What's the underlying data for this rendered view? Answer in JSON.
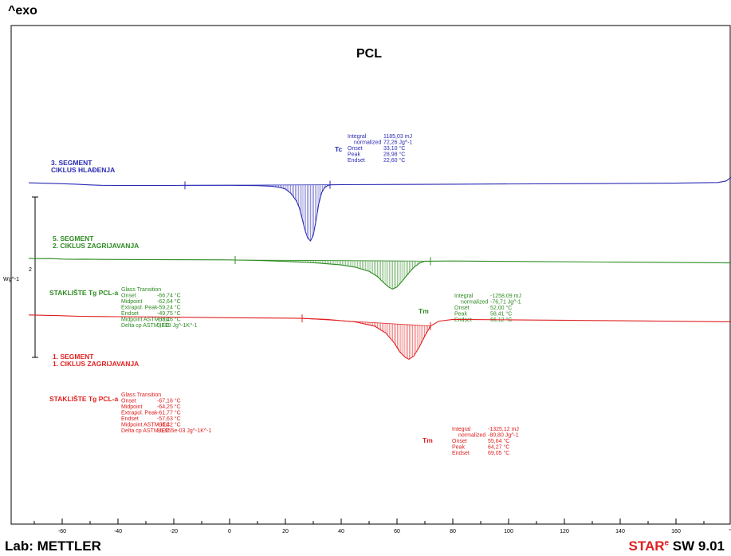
{
  "header": {
    "exo": "^exo"
  },
  "footer": {
    "lab": "Lab: METTLER",
    "star_a": "STAR",
    "star_e": "e",
    "star_b": " SW 9.01"
  },
  "colors": {
    "blue": "#2a2ab4",
    "green": "#2e8b22",
    "red": "#e02020"
  },
  "chart_data": {
    "type": "line",
    "title": "PCL",
    "xlabel": "°C",
    "ylabel": "Wg^-1",
    "y_scale_mark": "2",
    "xlim": [
      -72,
      182
    ],
    "xticks": [
      -60,
      -40,
      -20,
      0,
      20,
      40,
      60,
      80,
      100,
      120,
      140,
      160,
      180
    ],
    "xtick_labels": [
      "-60",
      "-40",
      "-20",
      "0",
      "20",
      "40",
      "60",
      "80",
      "100",
      "120",
      "140",
      "160",
      "°C"
    ],
    "grid": false,
    "series": [
      {
        "name": "3. SEGMENT CIKLUS HLAĐENJA",
        "label_lines": [
          "3. SEGMENT",
          "CIKLUS HLAĐENJA"
        ],
        "color": "#2a2ab4",
        "peak_label": "Tc",
        "x": [
          -72,
          -66,
          -60,
          -55,
          -50,
          -46,
          -40,
          -20,
          -16,
          0,
          10,
          15,
          18,
          20,
          22,
          24,
          25,
          26,
          27,
          28,
          29,
          30,
          31,
          32,
          33,
          34,
          35,
          36,
          40,
          80,
          120,
          160,
          175,
          178,
          180,
          182
        ],
        "y": [
          0.16,
          0.13,
          0.1,
          0.06,
          0.01,
          -0.02,
          -0.03,
          -0.03,
          -0.02,
          -0.02,
          -0.04,
          -0.08,
          -0.16,
          -0.28,
          -0.6,
          -1.15,
          -1.62,
          -2.4,
          -3.2,
          -3.8,
          -4.0,
          -3.6,
          -2.5,
          -1.3,
          -0.55,
          -0.2,
          -0.05,
          0.02,
          0.03,
          0.06,
          0.1,
          0.14,
          0.18,
          0.3,
          0.6,
          0.85
        ],
        "integration": {
          "start": -16,
          "end": 36
        },
        "results": [
          {
            "label": "Integral",
            "value": "1185,03 mJ"
          },
          {
            "label": "normalized",
            "value": "72,26 Jg^-1"
          },
          {
            "label": "Onset",
            "value": "33,10 °C"
          },
          {
            "label": "Peak",
            "value": "28,98 °C"
          },
          {
            "label": "Endset",
            "value": "22,60 °C"
          }
        ]
      },
      {
        "name": "5. SEGMENT 2. CIKLUS ZAGRIJAVANJA",
        "label_lines": [
          "5. SEGMENT",
          "2. CIKLUS ZAGRIJAVANJA"
        ],
        "color": "#2e8b22",
        "peak_label": "Tm",
        "glass_label": "STAKLIŠTE Tg PCL-a",
        "x": [
          -72,
          -68,
          -64,
          -60,
          -56,
          -52,
          -48,
          -40,
          -20,
          0,
          2,
          10,
          20,
          30,
          40,
          45,
          50,
          53,
          55,
          57,
          58.4,
          60,
          62,
          64,
          66,
          68,
          70,
          80,
          100,
          140,
          182
        ],
        "y": [
          -5.25,
          -5.27,
          -5.26,
          -5.3,
          -5.32,
          -5.31,
          -5.32,
          -5.33,
          -5.35,
          -5.36,
          -5.37,
          -5.4,
          -5.47,
          -5.56,
          -5.72,
          -5.88,
          -6.18,
          -6.55,
          -6.95,
          -7.3,
          -7.45,
          -7.3,
          -6.85,
          -6.35,
          -5.9,
          -5.6,
          -5.45,
          -5.44,
          -5.47,
          -5.52,
          -5.58
        ],
        "integration": {
          "start": 2,
          "end": 72
        },
        "glass_results": [
          {
            "label": "Glass Transition",
            "value": ""
          },
          {
            "label": "Onset",
            "value": "-66,74 °C"
          },
          {
            "label": "Midpoint",
            "value": "-62,64 °C"
          },
          {
            "label": "Extrapol. Peak",
            "value": "-59,24 °C"
          },
          {
            "label": "Endset",
            "value": "-49,75 °C"
          },
          {
            "label": "Midpoint ASTM,IEC",
            "value": "-63,46 °C"
          },
          {
            "label": "Delta cp ASTM,IEC",
            "value": "0,139 Jg^-1K^-1"
          }
        ],
        "results": [
          {
            "label": "Integral",
            "value": "-1258,09 mJ"
          },
          {
            "label": "normalized",
            "value": "-76,71 Jg^-1"
          },
          {
            "label": "Onset",
            "value": "52,00 °C"
          },
          {
            "label": "Peak",
            "value": "58,41 °C"
          },
          {
            "label": "Endset",
            "value": "66,12 °C"
          }
        ]
      },
      {
        "name": "1. SEGMENT 1. CIKLUS ZAGRIJAVANJA",
        "label_lines": [
          "1. SEGMENT",
          "1. CIKLUS ZAGRIJAVANJA"
        ],
        "color": "#e02020",
        "peak_label": "Tm",
        "glass_label": "STAKLIŠTE Tg PCL-a",
        "x": [
          -72,
          -66,
          -62,
          -58,
          -54,
          -50,
          -40,
          -20,
          0,
          20,
          26,
          35,
          45,
          52,
          56,
          59,
          61,
          63,
          64.3,
          66,
          68,
          70,
          72,
          75,
          80,
          100,
          140,
          182
        ],
        "y": [
          -9.3,
          -9.33,
          -9.35,
          -9.38,
          -9.4,
          -9.41,
          -9.43,
          -9.46,
          -9.5,
          -9.53,
          -9.55,
          -9.62,
          -9.8,
          -10.1,
          -10.6,
          -11.3,
          -11.95,
          -12.35,
          -12.48,
          -12.25,
          -11.6,
          -10.8,
          -10.1,
          -9.75,
          -9.62,
          -9.65,
          -9.72,
          -9.8
        ],
        "integration": {
          "start": 26,
          "end": 72
        },
        "glass_results": [
          {
            "label": "Glass Transition",
            "value": ""
          },
          {
            "label": "Onset",
            "value": "-67,16 °C"
          },
          {
            "label": "Midpoint",
            "value": "-64,25 °C"
          },
          {
            "label": "Extrapol. Peak",
            "value": "-61,77 °C"
          },
          {
            "label": "Endset",
            "value": "-57,63 °C"
          },
          {
            "label": "Midpoint ASTM,IEC",
            "value": "-64,42 °C"
          },
          {
            "label": "Delta cp ASTM,IEC",
            "value": "85,955e-03 Jg^-1K^-1"
          }
        ],
        "results": [
          {
            "label": "Integral",
            "value": "-1325,12 mJ"
          },
          {
            "label": "normalized",
            "value": "-80,80 Jg^-1"
          },
          {
            "label": "Onset",
            "value": "55,64 °C"
          },
          {
            "label": "Peak",
            "value": "64,27 °C"
          },
          {
            "label": "Endset",
            "value": "69,05 °C"
          }
        ]
      }
    ]
  }
}
